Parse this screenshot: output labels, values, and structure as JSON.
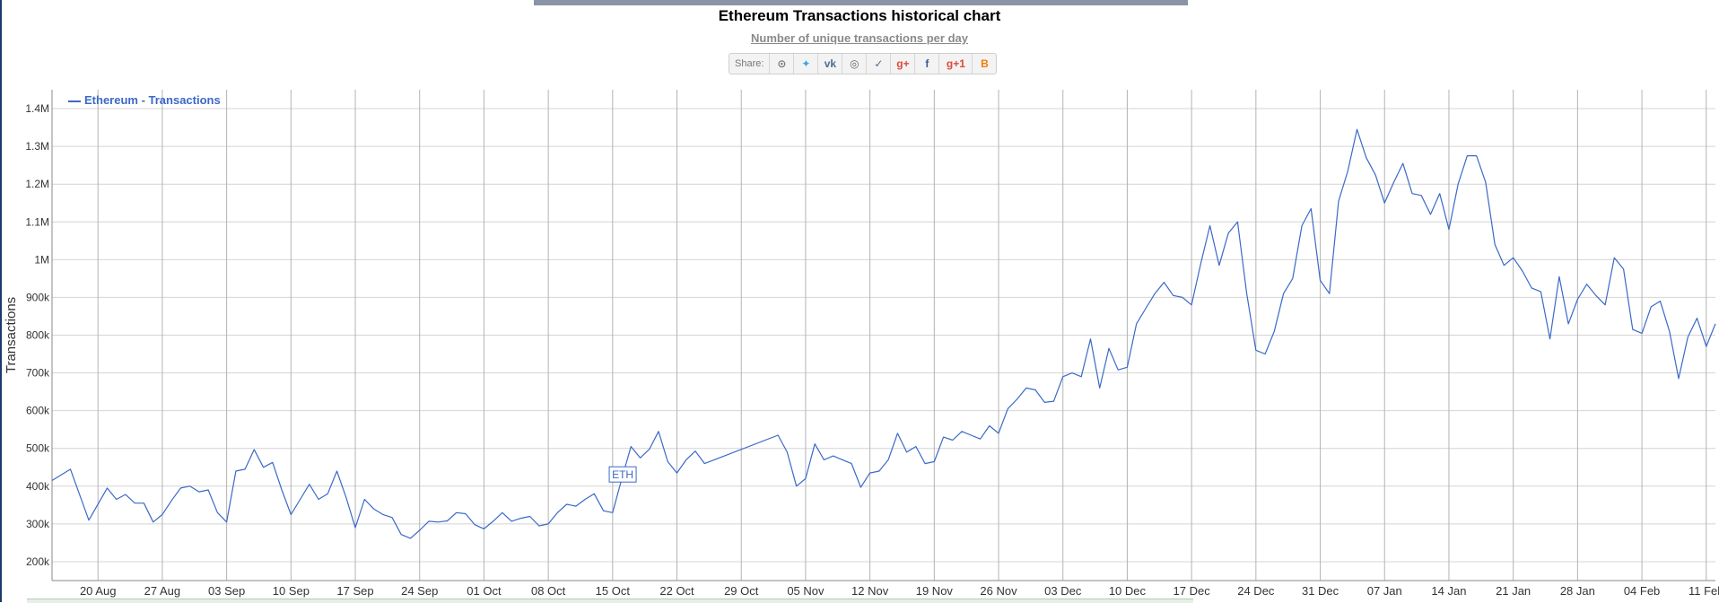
{
  "chart_data": {
    "type": "line",
    "title": "Ethereum Transactions historical chart",
    "subtitle": "Number of unique transactions per day",
    "ylabel": "Transactions",
    "xlabel": "",
    "ylim": [
      150000,
      1450000
    ],
    "yticks": [
      200000,
      300000,
      400000,
      500000,
      600000,
      700000,
      800000,
      900000,
      1000000,
      1100000,
      1200000,
      1300000,
      1400000
    ],
    "ytick_labels": [
      "200k",
      "300k",
      "400k",
      "500k",
      "600k",
      "700k",
      "800k",
      "900k",
      "1M",
      "1.1M",
      "1.2M",
      "1.3M",
      "1.4M"
    ],
    "x_start": "2017-08-15",
    "xticks": [
      "2017-08-20",
      "2017-08-27",
      "2017-09-03",
      "2017-09-10",
      "2017-09-17",
      "2017-09-24",
      "2017-10-01",
      "2017-10-08",
      "2017-10-15",
      "2017-10-22",
      "2017-10-29",
      "2017-11-05",
      "2017-11-12",
      "2017-11-19",
      "2017-11-26",
      "2017-12-03",
      "2017-12-10",
      "2017-12-17",
      "2017-12-24",
      "2017-12-31",
      "2018-01-07",
      "2018-01-14",
      "2018-01-21",
      "2018-01-28",
      "2018-02-04",
      "2018-02-11"
    ],
    "xtick_labels": [
      "20 Aug",
      "27 Aug",
      "03 Sep",
      "10 Sep",
      "17 Sep",
      "24 Sep",
      "01 Oct",
      "08 Oct",
      "15 Oct",
      "22 Oct",
      "29 Oct",
      "05 Nov",
      "12 Nov",
      "19 Nov",
      "26 Nov",
      "03 Dec",
      "10 Dec",
      "17 Dec",
      "24 Dec",
      "31 Dec",
      "07 Jan",
      "14 Jan",
      "21 Jan",
      "28 Jan",
      "04 Feb",
      "11 Feb"
    ],
    "grid": true,
    "legend": "top-left",
    "series": [
      {
        "name": "Ethereum - Transactions",
        "color": "#3b69c7",
        "x": [
          "2017-08-15",
          "2017-08-17",
          "2017-08-19",
          "2017-08-21",
          "2017-08-22",
          "2017-08-23",
          "2017-08-24",
          "2017-08-25",
          "2017-08-26",
          "2017-08-27",
          "2017-08-28",
          "2017-08-29",
          "2017-08-30",
          "2017-08-31",
          "2017-09-01",
          "2017-09-02",
          "2017-09-03",
          "2017-09-04",
          "2017-09-05",
          "2017-09-06",
          "2017-09-07",
          "2017-09-08",
          "2017-09-09",
          "2017-09-10",
          "2017-09-11",
          "2017-09-12",
          "2017-09-13",
          "2017-09-14",
          "2017-09-15",
          "2017-09-16",
          "2017-09-17",
          "2017-09-18",
          "2017-09-19",
          "2017-09-20",
          "2017-09-21",
          "2017-09-22",
          "2017-09-23",
          "2017-09-24",
          "2017-09-25",
          "2017-09-26",
          "2017-09-27",
          "2017-09-28",
          "2017-09-29",
          "2017-09-30",
          "2017-10-01",
          "2017-10-02",
          "2017-10-03",
          "2017-10-04",
          "2017-10-05",
          "2017-10-06",
          "2017-10-07",
          "2017-10-08",
          "2017-10-09",
          "2017-10-10",
          "2017-10-11",
          "2017-10-12",
          "2017-10-13",
          "2017-10-14",
          "2017-10-15",
          "2017-10-16",
          "2017-10-17",
          "2017-10-18",
          "2017-10-19",
          "2017-10-20",
          "2017-10-21",
          "2017-10-22",
          "2017-10-23",
          "2017-10-24",
          "2017-10-25",
          "2017-11-02",
          "2017-11-03",
          "2017-11-04",
          "2017-11-05",
          "2017-11-06",
          "2017-11-07",
          "2017-11-08",
          "2017-11-09",
          "2017-11-10",
          "2017-11-11",
          "2017-11-12",
          "2017-11-13",
          "2017-11-14",
          "2017-11-15",
          "2017-11-16",
          "2017-11-17",
          "2017-11-18",
          "2017-11-19",
          "2017-11-20",
          "2017-11-21",
          "2017-11-22",
          "2017-11-23",
          "2017-11-24",
          "2017-11-25",
          "2017-11-26",
          "2017-11-27",
          "2017-11-28",
          "2017-11-29",
          "2017-11-30",
          "2017-12-01",
          "2017-12-02",
          "2017-12-03",
          "2017-12-04",
          "2017-12-05",
          "2017-12-06",
          "2017-12-07",
          "2017-12-08",
          "2017-12-09",
          "2017-12-10",
          "2017-12-11",
          "2017-12-12",
          "2017-12-13",
          "2017-12-14",
          "2017-12-15",
          "2017-12-16",
          "2017-12-17",
          "2017-12-18",
          "2017-12-19",
          "2017-12-20",
          "2017-12-21",
          "2017-12-22",
          "2017-12-23",
          "2017-12-24",
          "2017-12-25",
          "2017-12-26",
          "2017-12-27",
          "2017-12-28",
          "2017-12-29",
          "2017-12-30",
          "2017-12-31",
          "2018-01-01",
          "2018-01-02",
          "2018-01-03",
          "2018-01-04",
          "2018-01-05",
          "2018-01-06",
          "2018-01-07",
          "2018-01-08",
          "2018-01-09",
          "2018-01-10",
          "2018-01-11",
          "2018-01-12",
          "2018-01-13",
          "2018-01-14",
          "2018-01-15",
          "2018-01-16",
          "2018-01-17",
          "2018-01-18",
          "2018-01-19",
          "2018-01-20",
          "2018-01-21",
          "2018-01-22",
          "2018-01-23",
          "2018-01-24",
          "2018-01-25",
          "2018-01-26",
          "2018-01-27",
          "2018-01-28",
          "2018-01-29",
          "2018-01-30",
          "2018-01-31",
          "2018-02-01",
          "2018-02-02",
          "2018-02-03",
          "2018-02-04",
          "2018-02-05",
          "2018-02-06",
          "2018-02-07",
          "2018-02-08",
          "2018-02-09",
          "2018-02-10",
          "2018-02-11",
          "2018-02-12"
        ],
        "values": [
          415000,
          445000,
          310000,
          395000,
          365000,
          378000,
          355000,
          355000,
          305000,
          325000,
          362000,
          395000,
          400000,
          385000,
          390000,
          330000,
          305000,
          440000,
          445000,
          497000,
          450000,
          463000,
          390000,
          325000,
          365000,
          405000,
          365000,
          380000,
          440000,
          370000,
          290000,
          365000,
          340000,
          325000,
          317000,
          272000,
          262000,
          283000,
          307000,
          305000,
          308000,
          330000,
          327000,
          298000,
          287000,
          307000,
          330000,
          307000,
          315000,
          320000,
          295000,
          300000,
          330000,
          352000,
          347000,
          365000,
          380000,
          335000,
          330000,
          420000,
          505000,
          475000,
          498000,
          545000,
          465000,
          435000,
          470000,
          493000,
          460000,
          535000,
          490000,
          400000,
          420000,
          512000,
          470000,
          480000,
          470000,
          460000,
          397000,
          435000,
          440000,
          470000,
          540000,
          490000,
          505000,
          460000,
          465000,
          530000,
          522000,
          545000,
          535000,
          525000,
          560000,
          540000,
          605000,
          630000,
          660000,
          655000,
          622000,
          625000,
          690000,
          700000,
          690000,
          790000,
          660000,
          765000,
          708000,
          715000,
          830000,
          870000,
          910000,
          940000,
          905000,
          900000,
          880000,
          990000,
          1090000,
          985000,
          1070000,
          1100000,
          910000,
          760000,
          750000,
          810000,
          910000,
          950000,
          1090000,
          1135000,
          945000,
          910000,
          1155000,
          1235000,
          1345000,
          1270000,
          1225000,
          1150000,
          1205000,
          1255000,
          1175000,
          1170000,
          1120000,
          1175000,
          1080000,
          1200000,
          1275000,
          1275000,
          1205000,
          1040000,
          985000,
          1005000,
          970000,
          925000,
          915000,
          790000,
          955000,
          830000,
          895000,
          935000,
          905000,
          880000,
          1005000,
          975000,
          815000,
          805000,
          875000,
          890000,
          810000,
          685000,
          795000,
          845000,
          770000,
          830000
        ]
      }
    ],
    "annotations": [
      {
        "text": "ETH",
        "x": "2017-10-16",
        "y": 430000
      }
    ]
  },
  "share": {
    "label": "Share:",
    "buttons": [
      {
        "icon": "reddit-icon",
        "glyph": "⊙",
        "color": "#777"
      },
      {
        "icon": "twitter-icon",
        "glyph": "✦",
        "color": "#3aa6e8"
      },
      {
        "icon": "vk-icon",
        "glyph": "vk",
        "color": "#4c6c91"
      },
      {
        "icon": "weibo-icon",
        "glyph": "◎",
        "color": "#666"
      },
      {
        "icon": "like-icon",
        "glyph": "✓",
        "color": "#4c6c91"
      },
      {
        "icon": "google-plus-icon",
        "glyph": "g+",
        "color": "#dd4b39"
      },
      {
        "icon": "facebook-icon",
        "glyph": "f",
        "color": "#3b5998"
      },
      {
        "icon": "google-plus-one-icon",
        "glyph": "g+1",
        "color": "#dd4b39"
      },
      {
        "icon": "blogger-icon",
        "glyph": "B",
        "color": "#f57d00"
      }
    ]
  }
}
